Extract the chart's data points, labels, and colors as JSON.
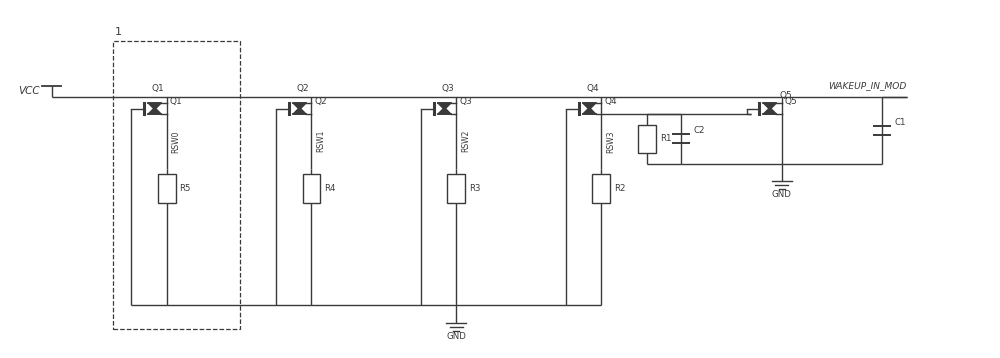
{
  "bg_color": "#ffffff",
  "line_color": "#3a3a3a",
  "text_color": "#3a3a3a",
  "vcc_label": "VCC",
  "gnd_label": "GND",
  "wakeup_label": "WAKEUP_IN_MOD",
  "box_label": "1",
  "q_labels": [
    "Q1",
    "Q2",
    "Q3",
    "Q4",
    "Q5"
  ],
  "rsw_labels": [
    "RSW0",
    "RSW1",
    "RSW2",
    "RSW3"
  ],
  "r_labels": [
    "R5",
    "R4",
    "R3",
    "R2",
    "R1"
  ],
  "c_labels": [
    "C2",
    "C1"
  ],
  "figsize": [
    10.0,
    3.58
  ],
  "dpi": 100
}
